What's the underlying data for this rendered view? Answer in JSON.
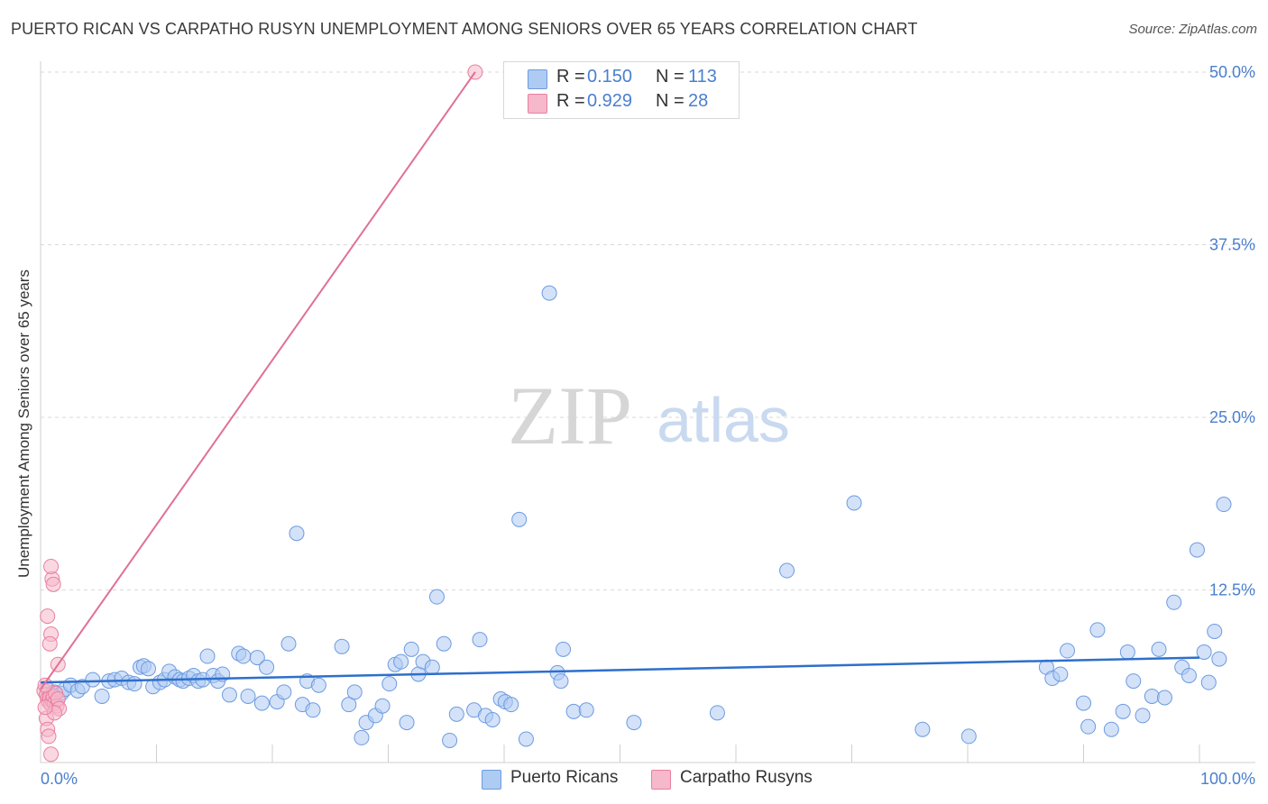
{
  "title": "PUERTO RICAN VS CARPATHO RUSYN UNEMPLOYMENT AMONG SENIORS OVER 65 YEARS CORRELATION CHART",
  "source": "Source: ZipAtlas.com",
  "watermark": {
    "zip": "ZIP",
    "atlas": "atlas"
  },
  "legend": [
    {
      "r_label": "R =",
      "r_value": "0.150",
      "n_label": "N =",
      "n_value": "113"
    },
    {
      "r_label": "R =",
      "r_value": "0.929",
      "n_label": "N =",
      "n_value": "28"
    }
  ],
  "colors": {
    "blue_fill": "#aecbf2",
    "blue_stroke": "#6d9be0",
    "blue_line": "#2e6fcc",
    "pink_fill": "#f6b8cb",
    "pink_stroke": "#e97fa0",
    "pink_line": "#e07096",
    "tick_text": "#4a7fcf",
    "grid": "#d9d9d9"
  },
  "chart_data": {
    "type": "scatter",
    "title": "PUERTO RICAN VS CARPATHO RUSYN UNEMPLOYMENT AMONG SENIORS OVER 65 YEARS CORRELATION CHART",
    "xlabel": "",
    "ylabel": "Unemployment Among Seniors over 65 years",
    "xlim": [
      0,
      100
    ],
    "ylim": [
      0,
      52.5
    ],
    "x_tick_labels": [
      "0.0%",
      "100.0%"
    ],
    "y_ticks": [
      12.5,
      25.0,
      37.5,
      50.0
    ],
    "y_tick_labels": [
      "12.5%",
      "25.0%",
      "37.5%",
      "50.0%"
    ],
    "grid": true,
    "series": [
      {
        "name": "Puerto Ricans",
        "r": 0.15,
        "n": 113,
        "trend": {
          "x": [
            0,
            100
          ],
          "y": [
            5.8,
            7.6
          ]
        },
        "points": [
          [
            0.6,
            5.3
          ],
          [
            0.9,
            4.9
          ],
          [
            1.2,
            5.1
          ],
          [
            1.5,
            4.6
          ],
          [
            1.8,
            5.0
          ],
          [
            2.1,
            5.3
          ],
          [
            2.6,
            5.6
          ],
          [
            3.2,
            5.2
          ],
          [
            3.6,
            5.5
          ],
          [
            4.5,
            6.0
          ],
          [
            5.3,
            4.8
          ],
          [
            5.9,
            5.9
          ],
          [
            6.4,
            6.0
          ],
          [
            7.0,
            6.1
          ],
          [
            7.6,
            5.8
          ],
          [
            8.1,
            5.7
          ],
          [
            8.6,
            6.9
          ],
          [
            8.9,
            7.0
          ],
          [
            9.3,
            6.8
          ],
          [
            9.7,
            5.5
          ],
          [
            10.3,
            5.8
          ],
          [
            10.7,
            6.0
          ],
          [
            11.1,
            6.6
          ],
          [
            11.6,
            6.2
          ],
          [
            12.0,
            6.0
          ],
          [
            12.3,
            5.9
          ],
          [
            12.8,
            6.1
          ],
          [
            13.2,
            6.3
          ],
          [
            13.6,
            5.9
          ],
          [
            14.0,
            6.0
          ],
          [
            14.4,
            7.7
          ],
          [
            14.9,
            6.3
          ],
          [
            15.3,
            5.9
          ],
          [
            15.7,
            6.4
          ],
          [
            16.3,
            4.9
          ],
          [
            17.1,
            7.9
          ],
          [
            17.5,
            7.7
          ],
          [
            17.9,
            4.8
          ],
          [
            18.7,
            7.6
          ],
          [
            19.1,
            4.3
          ],
          [
            19.5,
            6.9
          ],
          [
            20.4,
            4.4
          ],
          [
            21.0,
            5.1
          ],
          [
            21.4,
            8.6
          ],
          [
            22.1,
            16.6
          ],
          [
            22.6,
            4.2
          ],
          [
            23.0,
            5.9
          ],
          [
            23.5,
            3.8
          ],
          [
            24.0,
            5.6
          ],
          [
            26.0,
            8.4
          ],
          [
            26.6,
            4.2
          ],
          [
            27.1,
            5.1
          ],
          [
            27.7,
            1.8
          ],
          [
            28.1,
            2.9
          ],
          [
            28.9,
            3.4
          ],
          [
            29.5,
            4.1
          ],
          [
            30.1,
            5.7
          ],
          [
            30.6,
            7.1
          ],
          [
            31.1,
            7.3
          ],
          [
            31.6,
            2.9
          ],
          [
            32.0,
            8.2
          ],
          [
            32.6,
            6.4
          ],
          [
            33.0,
            7.3
          ],
          [
            33.8,
            6.9
          ],
          [
            34.2,
            12.0
          ],
          [
            34.8,
            8.6
          ],
          [
            35.3,
            1.6
          ],
          [
            35.9,
            3.5
          ],
          [
            37.4,
            3.8
          ],
          [
            37.9,
            8.9
          ],
          [
            38.4,
            3.4
          ],
          [
            39.0,
            3.1
          ],
          [
            39.7,
            4.6
          ],
          [
            40.1,
            4.4
          ],
          [
            40.6,
            4.2
          ],
          [
            41.3,
            17.6
          ],
          [
            41.9,
            1.7
          ],
          [
            43.9,
            34.0
          ],
          [
            44.6,
            6.5
          ],
          [
            44.9,
            5.9
          ],
          [
            45.1,
            8.2
          ],
          [
            46.0,
            3.7
          ],
          [
            47.1,
            3.8
          ],
          [
            51.2,
            2.9
          ],
          [
            58.4,
            3.6
          ],
          [
            64.4,
            13.9
          ],
          [
            70.2,
            18.8
          ],
          [
            76.1,
            2.4
          ],
          [
            80.1,
            1.9
          ],
          [
            86.8,
            6.9
          ],
          [
            87.3,
            6.1
          ],
          [
            88.0,
            6.4
          ],
          [
            88.6,
            8.1
          ],
          [
            90.0,
            4.3
          ],
          [
            90.4,
            2.6
          ],
          [
            91.2,
            9.6
          ],
          [
            92.4,
            2.4
          ],
          [
            93.4,
            3.7
          ],
          [
            93.8,
            8.0
          ],
          [
            94.3,
            5.9
          ],
          [
            95.1,
            3.4
          ],
          [
            95.9,
            4.8
          ],
          [
            96.5,
            8.2
          ],
          [
            97.0,
            4.7
          ],
          [
            97.8,
            11.6
          ],
          [
            98.5,
            6.9
          ],
          [
            99.1,
            6.3
          ],
          [
            99.8,
            15.4
          ],
          [
            100.4,
            8.0
          ],
          [
            100.8,
            5.8
          ],
          [
            101.3,
            9.5
          ],
          [
            101.7,
            7.5
          ],
          [
            102.1,
            18.7
          ]
        ]
      },
      {
        "name": "Carpatho Rusyns",
        "r": 0.929,
        "n": 28,
        "trend": {
          "x": [
            0,
            37.5
          ],
          "y": [
            5.3,
            50.0
          ]
        },
        "points": [
          [
            0.3,
            5.2
          ],
          [
            0.5,
            4.9
          ],
          [
            0.6,
            4.6
          ],
          [
            0.7,
            4.4
          ],
          [
            0.8,
            4.7
          ],
          [
            0.9,
            4.2
          ],
          [
            1.0,
            4.5
          ],
          [
            1.1,
            4.8
          ],
          [
            1.2,
            4.3
          ],
          [
            1.3,
            5.0
          ],
          [
            1.4,
            4.1
          ],
          [
            1.5,
            4.6
          ],
          [
            1.6,
            3.9
          ],
          [
            0.4,
            5.6
          ],
          [
            0.5,
            3.2
          ],
          [
            0.6,
            2.4
          ],
          [
            0.7,
            1.9
          ],
          [
            0.9,
            0.6
          ],
          [
            0.6,
            10.6
          ],
          [
            0.9,
            9.3
          ],
          [
            0.8,
            8.6
          ],
          [
            1.0,
            13.3
          ],
          [
            1.1,
            12.9
          ],
          [
            0.9,
            14.2
          ],
          [
            1.5,
            7.1
          ],
          [
            1.2,
            3.6
          ],
          [
            0.4,
            4.0
          ],
          [
            37.5,
            50.0
          ]
        ]
      }
    ]
  },
  "bottom_legend": [
    "Puerto Ricans",
    "Carpatho Rusyns"
  ]
}
